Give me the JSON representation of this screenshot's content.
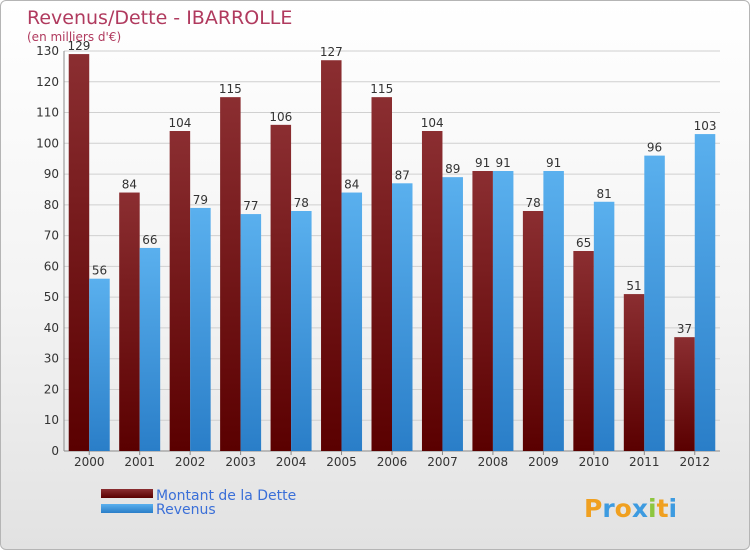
{
  "chart_data": {
    "type": "bar",
    "title": "Revenus/Dette - IBARROLLE",
    "subtitle": "(en milliers d'€)",
    "categories": [
      "2000",
      "2001",
      "2002",
      "2003",
      "2004",
      "2005",
      "2006",
      "2007",
      "2008",
      "2009",
      "2010",
      "2011",
      "2012"
    ],
    "series": [
      {
        "name": "Montant de la Dette",
        "color": "#7a1a1a",
        "values": [
          129,
          84,
          104,
          115,
          106,
          127,
          115,
          104,
          91,
          78,
          65,
          51,
          37
        ]
      },
      {
        "name": "Revenus",
        "color": "#3d9be0",
        "values": [
          56,
          66,
          79,
          77,
          78,
          84,
          87,
          89,
          91,
          91,
          81,
          96,
          103
        ]
      }
    ],
    "ylim": [
      0,
      130
    ],
    "yticks": [
      0,
      10,
      20,
      30,
      40,
      50,
      60,
      70,
      80,
      90,
      100,
      110,
      120,
      130
    ],
    "grid": true,
    "legend": "bottom-left"
  },
  "brand": {
    "letters": [
      "P",
      "r",
      "o",
      "x",
      "i",
      "t",
      "i"
    ],
    "colors": [
      "#f0a020",
      "#3d9be0",
      "#f0a020",
      "#3d9be0",
      "#8dc63f",
      "#f0a020",
      "#3d9be0"
    ]
  }
}
